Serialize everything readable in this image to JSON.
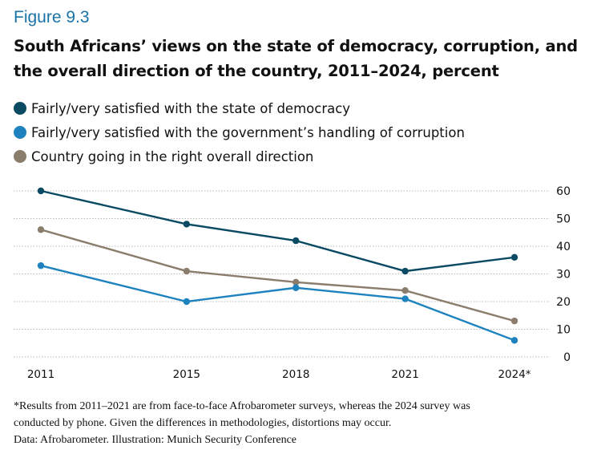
{
  "figure_label": "Figure 9.3",
  "title": "South Africans’ views on the state of democracy, corruption, and the overall direction of the country, 2011–2024, percent",
  "notes": [
    "*Results from 2011–2021 are from face-to-face Afrobarometer surveys, whereas the 2024 survey was",
    "conducted by phone. Given the differences in methodologies, distortions may occur.",
    "Data: Afrobarometer. Illustration: Munich Security Conference"
  ],
  "chart_data": {
    "type": "line",
    "title": "South Africans’ views on the state of democracy, corruption, and the overall direction of the country, 2011–2024, percent",
    "xlabel": "",
    "ylabel": "percent",
    "x": [
      2011,
      2015,
      2018,
      2021,
      2024
    ],
    "x_tick_labels": [
      "2011",
      "2015",
      "2018",
      "2021",
      "2024*"
    ],
    "y_ticks": [
      0,
      10,
      20,
      30,
      40,
      50,
      60
    ],
    "ylim": [
      0,
      60
    ],
    "grid": "horizontal-dotted",
    "y_axis_side": "right",
    "legend_position": "top-left",
    "series": [
      {
        "name": "Fairly/very satisfied with the state of democracy",
        "color": "#0b4a63",
        "values": [
          60,
          48,
          42,
          31,
          36
        ]
      },
      {
        "name": "Fairly/very satisfied with the government’s handling of corruption",
        "color": "#1e82bf",
        "values": [
          33,
          20,
          25,
          21,
          6
        ]
      },
      {
        "name": "Country going in the right overall direction",
        "color": "#8a7d6c",
        "values": [
          46,
          31,
          27,
          24,
          13
        ]
      }
    ]
  }
}
